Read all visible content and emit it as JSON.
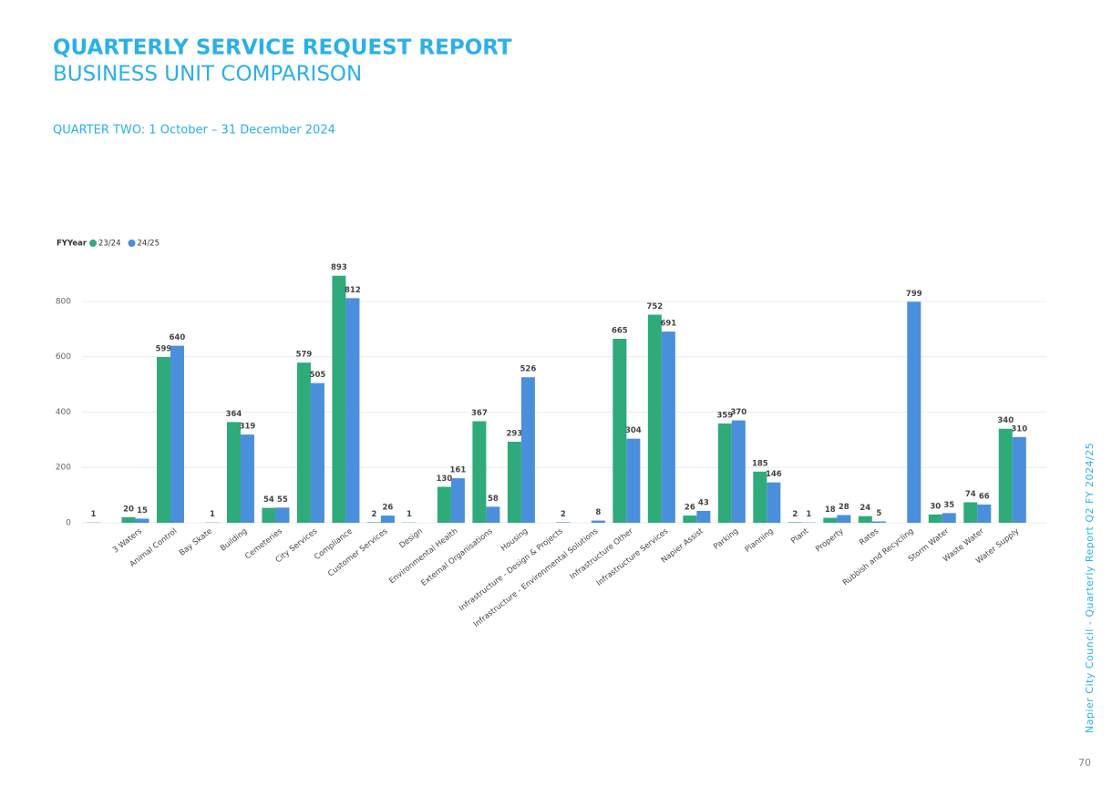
{
  "header": {
    "title": "QUARTERLY SERVICE REQUEST REPORT",
    "subtitle": "BUSINESS UNIT COMPARISON",
    "quarter": "QUARTER TWO: 1 October – 31 December 2024"
  },
  "footer": {
    "side_text": "Napier City Council - Quarterly Report Q2 FY 2024/25",
    "page": "70"
  },
  "chart_data": {
    "type": "bar",
    "legend_title": "FYYear",
    "legend": "top-left",
    "grid": true,
    "categories": [
      null,
      "3 Waters",
      "Animal Control",
      "Bay Skate",
      "Building",
      "Cemeteries",
      "City Services",
      "Compliance",
      "Customer Services",
      "Design",
      "Environmental Health",
      "External Organisations",
      "Housing",
      "Infrastructure - Design & Projects",
      "Infrastructure - Environmental Solutions",
      "Infrastructure Other",
      "Infrastructure Services",
      "Napier Assist",
      "Parking",
      "Planning",
      "Plant",
      "Property",
      "Rates",
      "Rubbish and Recycling",
      "Storm Water",
      "Waste Water",
      "Water Supply"
    ],
    "series": [
      {
        "name": "23/24",
        "color": "#2eaa7b",
        "values": [
          1,
          20,
          599,
          null,
          364,
          54,
          579,
          893,
          2,
          1,
          130,
          367,
          293,
          null,
          null,
          665,
          752,
          26,
          359,
          185,
          2,
          18,
          24,
          null,
          30,
          74,
          340
        ]
      },
      {
        "name": "24/25",
        "color": "#4a8fdc",
        "values": [
          null,
          15,
          640,
          1,
          319,
          55,
          505,
          812,
          26,
          null,
          161,
          58,
          526,
          2,
          8,
          304,
          691,
          43,
          370,
          146,
          1,
          28,
          5,
          799,
          35,
          66,
          310
        ]
      }
    ],
    "ylim": [
      0,
      900
    ],
    "yticks": [
      0,
      200,
      400,
      600,
      800
    ]
  }
}
